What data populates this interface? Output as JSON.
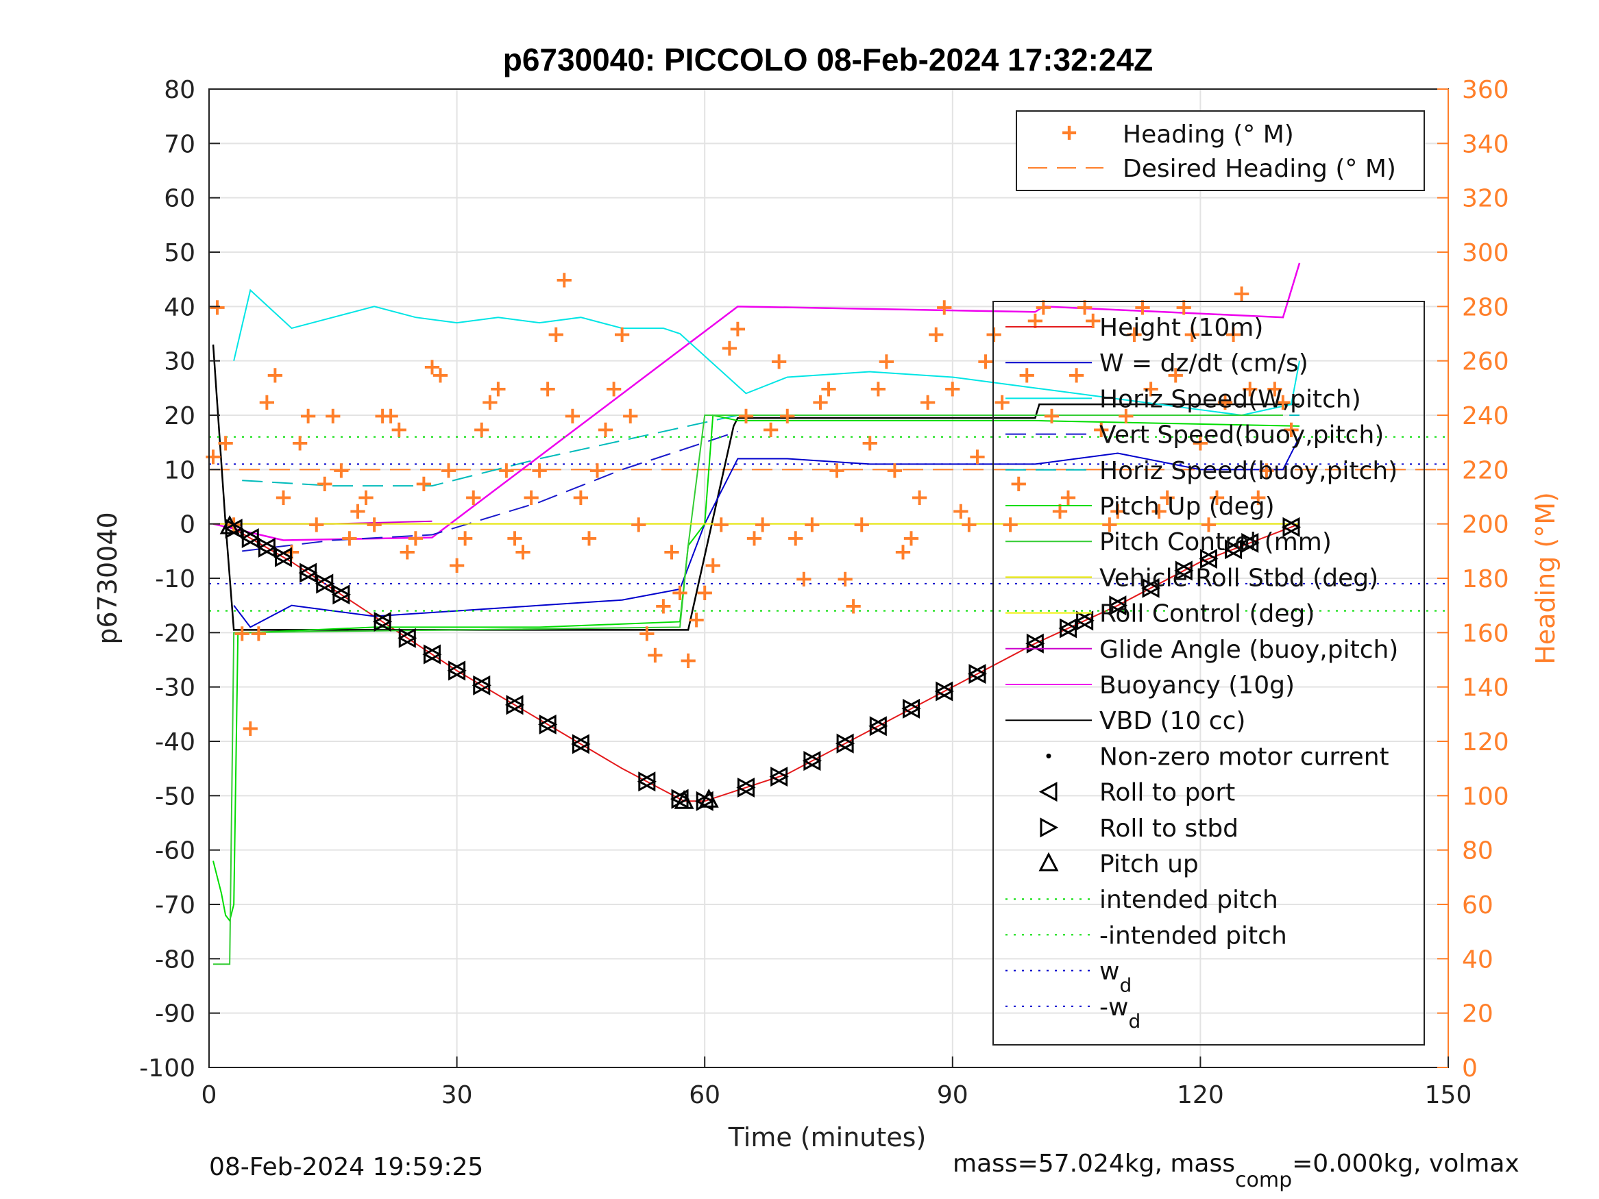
{
  "chart_data": {
    "type": "line",
    "title": "p6730040: PICCOLO 08-Feb-2024 17:32:24Z",
    "xlabel": "Time (minutes)",
    "ylabel": "p6730040",
    "y2label": "Heading (°M)",
    "xlim": [
      0,
      150
    ],
    "ylim": [
      -100,
      80
    ],
    "y2lim": [
      0,
      360
    ],
    "xticks": [
      "0",
      "30",
      "60",
      "90",
      "120",
      "150"
    ],
    "yticks": [
      "80",
      "70",
      "60",
      "50",
      "40",
      "30",
      "20",
      "10",
      "0",
      "-10",
      "-20",
      "-30",
      "-40",
      "-50",
      "-60",
      "-70",
      "-80",
      "-90",
      "-100"
    ],
    "y2ticks": [
      "360",
      "340",
      "320",
      "300",
      "280",
      "260",
      "240",
      "220",
      "200",
      "180",
      "160",
      "140",
      "120",
      "100",
      "80",
      "60",
      "40",
      "20",
      "0"
    ],
    "grid": true,
    "legend_right_axis": [
      "Heading (° M)",
      "Desired Heading (° M)"
    ],
    "legend_left_axis": [
      "Height (10m)",
      "W = dz/dt (cm/s)",
      "Horiz Speed(W,pitch)",
      "Vert Speed(buoy,pitch)",
      "Horiz Speed(buoy,pitch)",
      "Pitch Up (deg)",
      "Pitch Control (mm)",
      "Vehicle Roll Stbd (deg)",
      "Roll Control (deg)",
      "Glide Angle (buoy,pitch)",
      "Buoyancy (10g)",
      "VBD (10 cc)",
      "Non-zero motor current",
      "Roll to port",
      "Roll to stbd",
      "Pitch up",
      "intended pitch",
      "-intended pitch",
      "w",
      "-w"
    ],
    "legend_subscript": "d",
    "colors": {
      "height": "#e41a1c",
      "w": "#0000cc",
      "horiz_w": "#00e5e5",
      "vert_buoy": "#1a1acc",
      "horiz_buoy": "#00bbbb",
      "pitch": "#00dd00",
      "pitch_ctl": "#33cc33",
      "roll": "#e6e600",
      "roll_ctl": "#f0f000",
      "glide": "#cc00cc",
      "buoyancy": "#ee00ee",
      "vbd": "#000000",
      "heading": "#ff7f2a"
    },
    "series": [
      {
        "name": "Height (10m)",
        "x": [
          2,
          10,
          20,
          30,
          40,
          50,
          57.5,
          60,
          70,
          80,
          90,
          100,
          110,
          120,
          132
        ],
        "y": [
          0,
          -7,
          -17,
          -27,
          -36,
          -45,
          -51,
          -51,
          -46,
          -38,
          -30,
          -22,
          -15,
          -7,
          0
        ]
      },
      {
        "name": "VBD (10 cc)",
        "x": [
          0.5,
          2,
          3,
          57,
          58,
          63.5,
          64,
          100,
          100.5,
          132
        ],
        "y": [
          33,
          0,
          -19.5,
          -19.5,
          -19.5,
          18,
          19.5,
          19.5,
          22,
          22
        ]
      },
      {
        "name": "Buoyancy (10g)",
        "x": [
          0.5,
          9,
          27,
          64,
          100,
          101,
          130,
          132
        ],
        "y": [
          0,
          -3,
          -2.5,
          40,
          39,
          40,
          38,
          48
        ]
      },
      {
        "name": "Glide Angle (buoy,pitch)",
        "x": [
          0.5,
          15,
          27
        ],
        "y": [
          0,
          0,
          0.5
        ]
      },
      {
        "name": "Vert Speed(buoy,pitch)",
        "x": [
          4,
          15,
          27,
          40,
          50,
          64
        ],
        "y": [
          -5,
          -3,
          -2,
          4,
          10,
          17
        ]
      },
      {
        "name": "Horiz Speed(buoy,pitch)",
        "x": [
          4,
          15,
          27,
          40,
          64,
          100,
          132
        ],
        "y": [
          8,
          7,
          7,
          12,
          20,
          20,
          20
        ]
      },
      {
        "name": "Horiz Speed(W,pitch)",
        "x": [
          3,
          5,
          10,
          15,
          20,
          25,
          30,
          35,
          40,
          45,
          50,
          55,
          57,
          65,
          70,
          80,
          90,
          100,
          110,
          120,
          125,
          131,
          132
        ],
        "y": [
          30,
          43,
          36,
          38,
          40,
          38,
          37,
          38,
          37,
          38,
          36,
          36,
          35,
          24,
          27,
          28,
          27,
          25,
          23,
          21,
          20,
          22,
          30
        ]
      },
      {
        "name": "W = dz/dt (cm/s)",
        "x": [
          3,
          5,
          10,
          20,
          30,
          40,
          50,
          57,
          60,
          64,
          70,
          80,
          100,
          110,
          120,
          130,
          132
        ],
        "y": [
          -15,
          -19,
          -15,
          -17,
          -16,
          -15,
          -14,
          -12,
          0,
          12,
          12,
          11,
          11,
          13,
          10,
          10,
          16
        ]
      },
      {
        "name": "Pitch Up (deg)",
        "x": [
          0.5,
          1.5,
          2,
          2.5,
          3,
          3.5,
          5,
          20,
          40,
          57,
          58,
          60,
          61,
          64,
          80,
          100,
          132
        ],
        "y": [
          -62,
          -68,
          -72,
          -73,
          -70,
          -20,
          -20,
          -19,
          -19,
          -18,
          -4,
          0,
          20,
          19,
          19,
          19,
          18
        ]
      },
      {
        "name": "Pitch Control (mm)",
        "x": [
          0.5,
          2.5,
          3,
          57,
          58,
          60,
          130
        ],
        "y": [
          -81,
          -81,
          -20,
          -19,
          -4,
          20,
          20
        ]
      },
      {
        "name": "Vehicle Roll Stbd (deg)",
        "x": [
          0.5,
          132
        ],
        "y": [
          0,
          0
        ]
      },
      {
        "name": "intended pitch",
        "x": [
          0,
          150
        ],
        "y": [
          16,
          16
        ]
      },
      {
        "name": "-intended pitch",
        "x": [
          0,
          150
        ],
        "y": [
          -16,
          -16
        ]
      },
      {
        "name": "w",
        "x": [
          0,
          150
        ],
        "y": [
          11,
          11
        ]
      },
      {
        "name": "-w",
        "x": [
          0,
          150
        ],
        "y": [
          -11,
          -11
        ]
      }
    ],
    "heading": {
      "name": "Heading (° M)",
      "x": [
        0.5,
        1,
        2,
        3,
        4,
        5,
        6,
        7,
        8,
        9,
        10,
        11,
        12,
        13,
        14,
        15,
        16,
        17,
        18,
        19,
        20,
        21,
        22,
        23,
        24,
        25,
        26,
        27,
        28,
        29,
        30,
        31,
        32,
        33,
        34,
        35,
        36,
        37,
        38,
        39,
        40,
        41,
        42,
        43,
        44,
        45,
        46,
        47,
        48,
        49,
        50,
        51,
        52,
        53,
        54,
        55,
        56,
        57,
        58,
        59,
        60,
        61,
        62,
        63,
        64,
        65,
        66,
        67,
        68,
        69,
        70,
        71,
        72,
        73,
        74,
        75,
        76,
        77,
        78,
        79,
        80,
        81,
        82,
        83,
        84,
        85,
        86,
        87,
        88,
        89,
        90,
        91,
        92,
        93,
        94,
        95,
        96,
        97,
        98,
        99,
        100,
        101,
        102,
        103,
        104,
        105,
        106,
        107,
        108,
        109,
        110,
        111,
        112,
        113,
        114,
        115,
        116,
        117,
        118,
        119,
        120,
        121,
        122,
        123,
        124,
        125,
        126,
        127,
        128,
        129,
        130,
        131
      ],
      "y": [
        225,
        280,
        230,
        200,
        160,
        125,
        160,
        245,
        255,
        210,
        190,
        230,
        240,
        200,
        215,
        240,
        220,
        195,
        205,
        210,
        200,
        240,
        240,
        235,
        190,
        195,
        215,
        258,
        255,
        220,
        185,
        195,
        210,
        235,
        245,
        250,
        220,
        195,
        190,
        210,
        220,
        250,
        270,
        290,
        240,
        210,
        195,
        220,
        235,
        250,
        270,
        240,
        200,
        160,
        152,
        170,
        190,
        175,
        150,
        165,
        175,
        185,
        200,
        265,
        272,
        240,
        195,
        200,
        235,
        260,
        240,
        195,
        180,
        200,
        245,
        250,
        220,
        180,
        170,
        200,
        230,
        250,
        260,
        220,
        190,
        195,
        210,
        245,
        270,
        280,
        250,
        205,
        200,
        225,
        260,
        270,
        245,
        200,
        215,
        255,
        275,
        280,
        240,
        205,
        210,
        255,
        280,
        275,
        235,
        200,
        205,
        240,
        270,
        280,
        250,
        205,
        210,
        255,
        280,
        270,
        230,
        200,
        210,
        245,
        270,
        285,
        250,
        210,
        220,
        250,
        245,
        235
      ]
    },
    "desired_heading": {
      "name": "Desired Heading (° M)",
      "x": [
        0,
        150
      ],
      "y": [
        220,
        220
      ]
    },
    "markers": {
      "roll_to_port_x": [
        3,
        5,
        7,
        9,
        12,
        14,
        16,
        21,
        24,
        27,
        30,
        33,
        37,
        41,
        45,
        53,
        57,
        60,
        65,
        69,
        73,
        77,
        81,
        85,
        89,
        93,
        100,
        104,
        106,
        110,
        114,
        118,
        121,
        124,
        126,
        131
      ],
      "pitch_up_x": [
        2.5,
        57.5,
        60.5
      ]
    },
    "footer_left": "08-Feb-2024 19:59:25",
    "footer_right_a": "mass=57.024kg, mass",
    "footer_right_sub": "comp",
    "footer_right_b": "=0.000kg, volmax"
  }
}
